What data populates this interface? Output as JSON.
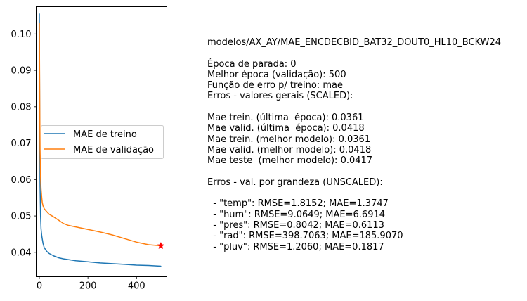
{
  "chart_data": {
    "type": "line",
    "xlim": [
      -13,
      525
    ],
    "ylim": [
      0.0333,
      0.1075
    ],
    "xticks": [
      0,
      200,
      400
    ],
    "yticks": [
      0.04,
      0.05,
      0.06,
      0.07,
      0.08,
      0.09,
      0.1
    ],
    "xtick_labels": [
      "0",
      "200",
      "400"
    ],
    "ytick_labels": [
      "0.04",
      "0.05",
      "0.06",
      "0.07",
      "0.08",
      "0.09",
      "0.10"
    ],
    "grid": false,
    "legend_position": "center-left",
    "series": [
      {
        "name": "MAE de treino",
        "color": "#1f77b4",
        "x": [
          0,
          1,
          2,
          3,
          5,
          7,
          10,
          15,
          20,
          30,
          40,
          60,
          80,
          100,
          150,
          200,
          250,
          300,
          350,
          400,
          450,
          500
        ],
        "y": [
          0.1055,
          0.085,
          0.068,
          0.058,
          0.05,
          0.0465,
          0.0445,
          0.0425,
          0.0413,
          0.0403,
          0.0397,
          0.039,
          0.0385,
          0.0382,
          0.0377,
          0.0374,
          0.0371,
          0.0369,
          0.0367,
          0.0365,
          0.0364,
          0.0362
        ]
      },
      {
        "name": "MAE de validação",
        "color": "#ff7f0e",
        "x": [
          0,
          1,
          2,
          3,
          5,
          7,
          10,
          12,
          15,
          20,
          30,
          40,
          50,
          60,
          80,
          100,
          120,
          150,
          200,
          250,
          300,
          350,
          400,
          450,
          500
        ],
        "y": [
          0.103,
          0.09,
          0.077,
          0.068,
          0.061,
          0.0575,
          0.055,
          0.0537,
          0.0528,
          0.052,
          0.0512,
          0.0505,
          0.0501,
          0.0497,
          0.0488,
          0.0479,
          0.0474,
          0.047,
          0.0463,
          0.0456,
          0.0448,
          0.0438,
          0.0428,
          0.0421,
          0.0418
        ]
      }
    ],
    "marker": {
      "x": 500,
      "y": 0.0418,
      "color": "#ff0000",
      "shape": "star"
    }
  },
  "info": {
    "lines": [
      "modelos/AX_AY/MAE_ENCDECBID_BAT32_DOUT0_HL10_BCKW24",
      "",
      "Época de parada: 0",
      "Melhor época (validação): 500",
      "Função de erro p/ treino: mae",
      "Erros - valores gerais (SCALED):",
      "",
      "Mae trein. (última  época): 0.0361",
      "Mae valid. (última  época): 0.0418",
      "Mae trein. (melhor modelo): 0.0361",
      "Mae valid. (melhor modelo): 0.0418",
      "Mae teste  (melhor modelo): 0.0417",
      "",
      "Erros - val. por grandeza (UNSCALED):",
      "",
      "  - \"temp\": RMSE=1.8152; MAE=1.3747",
      "  - \"hum\": RMSE=9.0649; MAE=6.6914",
      "  - \"pres\": RMSE=0.8042; MAE=0.6113",
      "  - \"rad\": RMSE=398.7063; MAE=185.9070",
      "  - \"pluv\": RMSE=1.2060; MAE=0.1817"
    ]
  }
}
